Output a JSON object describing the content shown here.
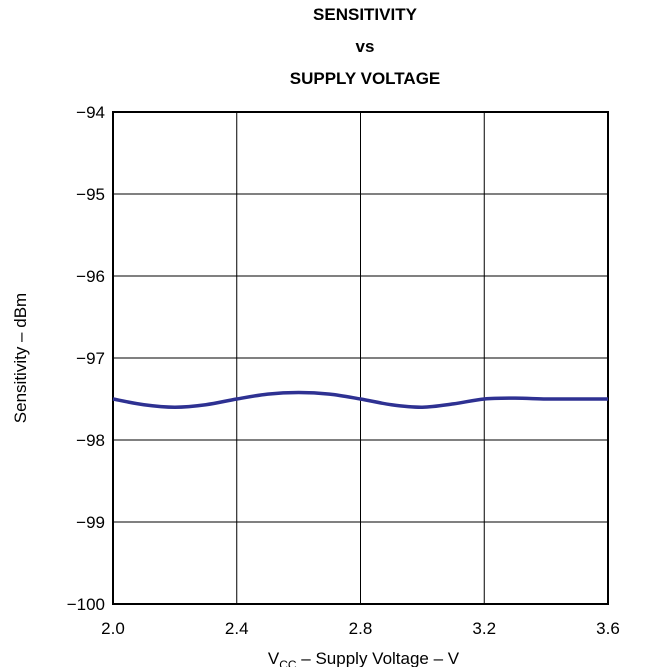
{
  "chart_data": {
    "type": "line",
    "title_lines": [
      "SENSITIVITY",
      "vs",
      "SUPPLY VOLTAGE"
    ],
    "xlabel": {
      "base": "V",
      "subscript": "CC",
      "rest": " – Supply Voltage – V"
    },
    "ylabel": "Sensitivity – dBm",
    "xlim": [
      2.0,
      3.6
    ],
    "ylim": [
      -100,
      -94
    ],
    "x_ticks": [
      "2.0",
      "2.4",
      "2.8",
      "3.2",
      "3.6"
    ],
    "y_ticks": [
      "−94",
      "−95",
      "−96",
      "−97",
      "−98",
      "−99",
      "−100"
    ],
    "grid": true,
    "line_color": "#2e3192",
    "series": [
      {
        "x": [
          2.0,
          2.1,
          2.2,
          2.3,
          2.4,
          2.5,
          2.6,
          2.7,
          2.8,
          2.9,
          3.0,
          3.1,
          3.2,
          3.3,
          3.4,
          3.5,
          3.6
        ],
        "values": [
          -97.5,
          -97.57,
          -97.6,
          -97.57,
          -97.5,
          -97.44,
          -97.42,
          -97.44,
          -97.5,
          -97.57,
          -97.6,
          -97.56,
          -97.5,
          -97.49,
          -97.5,
          -97.5,
          -97.5
        ]
      }
    ]
  }
}
